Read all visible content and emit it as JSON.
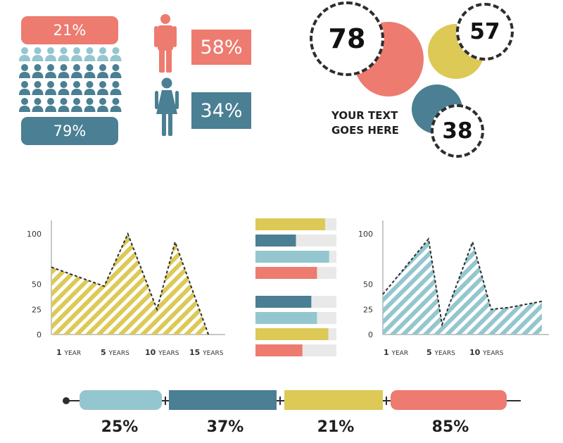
{
  "colors": {
    "coral": "#ed7b70",
    "teal": "#4b7f93",
    "light_blue": "#94c6cf",
    "mustard": "#dcc956",
    "dark": "#2e2e2e"
  },
  "people_panel": {
    "top_label": "21%",
    "bottom_label": "79%",
    "icon_name": "person-icon",
    "grid_rows": 4,
    "grid_cols": 8,
    "highlighted_fraction": 0.21
  },
  "gender_panel": {
    "male_icon": "male-icon",
    "female_icon": "female-icon",
    "male_value": "58%",
    "female_value": "34%"
  },
  "bubbles": [
    {
      "value": "78",
      "fill": "#ed7b70"
    },
    {
      "value": "57",
      "fill": "#dcc956"
    },
    {
      "value": "38",
      "fill": "#4b7f93"
    }
  ],
  "caption": {
    "line1": "YOUR TEXT",
    "line2": "GOES HERE"
  },
  "chart_data": [
    {
      "type": "area",
      "title": "",
      "x_labels": [
        {
          "num": "1",
          "unit": "YEAR"
        },
        {
          "num": "5",
          "unit": "YEARS"
        },
        {
          "num": "10",
          "unit": "YEARS"
        },
        {
          "num": "15",
          "unit": "YEARS"
        }
      ],
      "x": [
        0,
        3.8,
        5.5,
        7.6,
        8.9,
        11.3
      ],
      "y": [
        67,
        48,
        100,
        25,
        92,
        0
      ],
      "xlim": [
        0,
        12
      ],
      "ylim": [
        0,
        105
      ],
      "yticks": [
        0,
        25,
        50,
        100
      ],
      "fill": "#dcc956"
    },
    {
      "type": "bar",
      "orientation": "horizontal",
      "title": "",
      "xlim": [
        0,
        100
      ],
      "groups": [
        [
          {
            "value": 86,
            "color": "#dcc956"
          },
          {
            "value": 50,
            "color": "#4b7f93"
          },
          {
            "value": 91,
            "color": "#94c6cf"
          },
          {
            "value": 76,
            "color": "#ed7b70"
          }
        ],
        [
          {
            "value": 69,
            "color": "#4b7f93"
          },
          {
            "value": 76,
            "color": "#94c6cf"
          },
          {
            "value": 90,
            "color": "#dcc956"
          },
          {
            "value": 58,
            "color": "#ed7b70"
          }
        ]
      ]
    },
    {
      "type": "area",
      "title": "",
      "x_labels": [
        {
          "num": "1",
          "unit": "YEAR"
        },
        {
          "num": "5",
          "unit": "YEARS"
        },
        {
          "num": "10",
          "unit": "YEARS"
        }
      ],
      "x": [
        0,
        2.7,
        3.5,
        5.3,
        6.4,
        7.5,
        9.4
      ],
      "y": [
        40,
        95,
        10,
        92,
        25,
        27,
        33
      ],
      "xlim": [
        0,
        9.4
      ],
      "ylim": [
        0,
        105
      ],
      "yticks": [
        0,
        25,
        50,
        100
      ],
      "fill": "#94c6cf"
    },
    {
      "type": "bar",
      "orientation": "horizontal",
      "stacked": true,
      "title": "",
      "segments": [
        {
          "label": "25%",
          "value": 25,
          "color": "#94c6cf"
        },
        {
          "label": "37%",
          "value": 37,
          "color": "#4b7f93"
        },
        {
          "label": "21%",
          "value": 21,
          "color": "#dcc956"
        },
        {
          "label": "85%",
          "value": 85,
          "color": "#ed7b70"
        }
      ]
    }
  ]
}
